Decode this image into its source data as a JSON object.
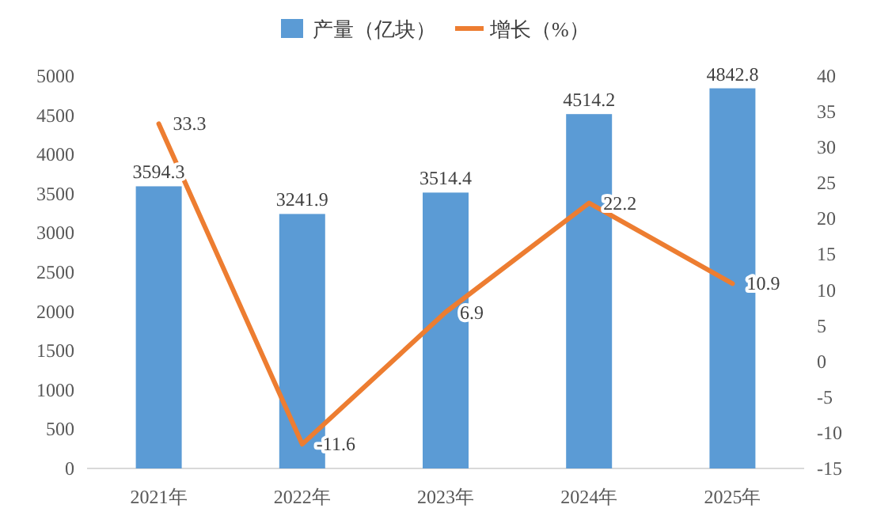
{
  "chart_data": {
    "type": "bar",
    "categories": [
      "2021年",
      "2022年",
      "2023年",
      "2024年",
      "2025年"
    ],
    "series": [
      {
        "name": "产量（亿块）",
        "color": "#5b9bd5",
        "values": [
          3594.3,
          3241.9,
          3514.4,
          4514.2,
          4842.8
        ]
      },
      {
        "name": "增长（%）",
        "type": "line",
        "axis": "y2",
        "color": "#ed7d31",
        "values": [
          33.3,
          -11.6,
          6.9,
          22.2,
          10.9
        ]
      }
    ],
    "ylim": [
      0,
      5000
    ],
    "yticks": [
      0,
      500,
      1000,
      1500,
      2000,
      2500,
      3000,
      3500,
      4000,
      4500,
      5000
    ],
    "y2lim": [
      -15,
      40
    ],
    "y2ticks": [
      -15,
      -10,
      -5,
      0,
      5,
      10,
      15,
      20,
      25,
      30,
      35,
      40
    ],
    "data_labels": true,
    "legend": "top"
  }
}
